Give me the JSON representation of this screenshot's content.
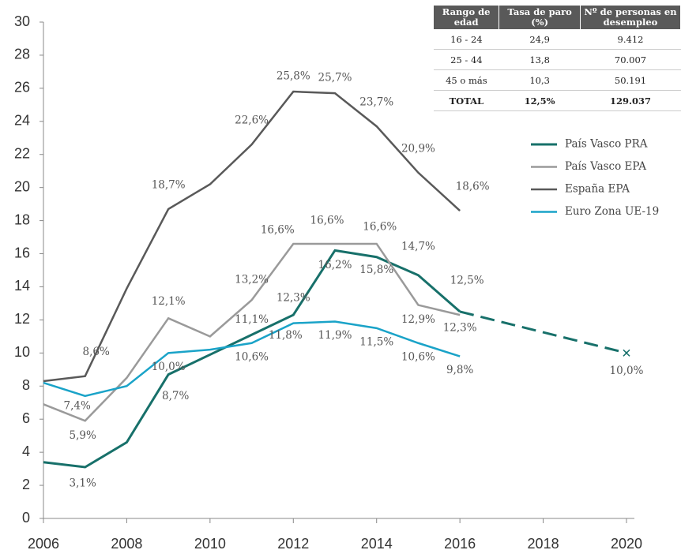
{
  "chart_data": {
    "type": "line",
    "x": [
      2006,
      2007,
      2008,
      2009,
      2010,
      2011,
      2012,
      2013,
      2014,
      2015,
      2016
    ],
    "series": [
      {
        "name": "País Vasco PRA",
        "color": "#17706a",
        "values": [
          3.4,
          3.1,
          4.6,
          8.7,
          9.9,
          11.1,
          12.3,
          16.2,
          15.8,
          14.7,
          12.5
        ],
        "value_labels": [
          null,
          "3,1%",
          null,
          "8,7%",
          null,
          "11,1%",
          "12,3%",
          "16,2%",
          "15,8%",
          "14,7%",
          "12,5%"
        ]
      },
      {
        "name": "País Vasco  EPA",
        "color": "#9a9a9a",
        "values": [
          6.9,
          5.9,
          8.5,
          12.1,
          11.0,
          13.2,
          16.6,
          16.6,
          16.6,
          12.9,
          12.3
        ],
        "value_labels": [
          null,
          "5,9%",
          null,
          "12,1%",
          null,
          "13,2%",
          "16,6%",
          "16,6%",
          "16,6%",
          "12,9%",
          "12,3%"
        ]
      },
      {
        "name": "España EPA",
        "color": "#595959",
        "values": [
          8.3,
          8.6,
          13.9,
          18.7,
          20.2,
          22.6,
          25.8,
          25.7,
          23.7,
          20.9,
          18.6
        ],
        "value_labels": [
          null,
          "8,6%",
          null,
          "18,7%",
          null,
          "22,6%",
          "25,8%",
          "25,7%",
          "23,7%",
          "20,9%",
          "18,6%"
        ]
      },
      {
        "name": "Euro Zona UE-19",
        "color": "#1aa3c8",
        "values": [
          8.2,
          7.4,
          8.0,
          10.0,
          10.2,
          10.6,
          11.8,
          11.9,
          11.5,
          10.6,
          9.8
        ],
        "value_labels": [
          null,
          "7,4%",
          null,
          "10,0%",
          null,
          "10,6%",
          "11,8%",
          "11,9%",
          "11,5%",
          "10,6%",
          "9,8%"
        ]
      }
    ],
    "projection": {
      "x": 2020,
      "value": 10.0,
      "value_label": "10,0%"
    },
    "xlim": [
      2006,
      2020
    ],
    "xticks": [
      2006,
      2008,
      2010,
      2012,
      2014,
      2016,
      2018,
      2020
    ],
    "ylim": [
      0,
      30
    ],
    "yticks": [
      0,
      2,
      4,
      6,
      8,
      10,
      12,
      14,
      16,
      18,
      20,
      22,
      24,
      26,
      28,
      30
    ],
    "legend": "right",
    "table": {
      "header": [
        "Rango de edad",
        "Tasa de paro (%)",
        "Nº de personas en desempleo"
      ],
      "rows": [
        [
          "16 - 24",
          "24,9",
          "9.412"
        ],
        [
          "25 - 44",
          "13,8",
          "70.007"
        ],
        [
          "45 o más",
          "10,3",
          "50.191"
        ],
        [
          "TOTAL",
          "12,5%",
          "129.037"
        ]
      ]
    }
  }
}
